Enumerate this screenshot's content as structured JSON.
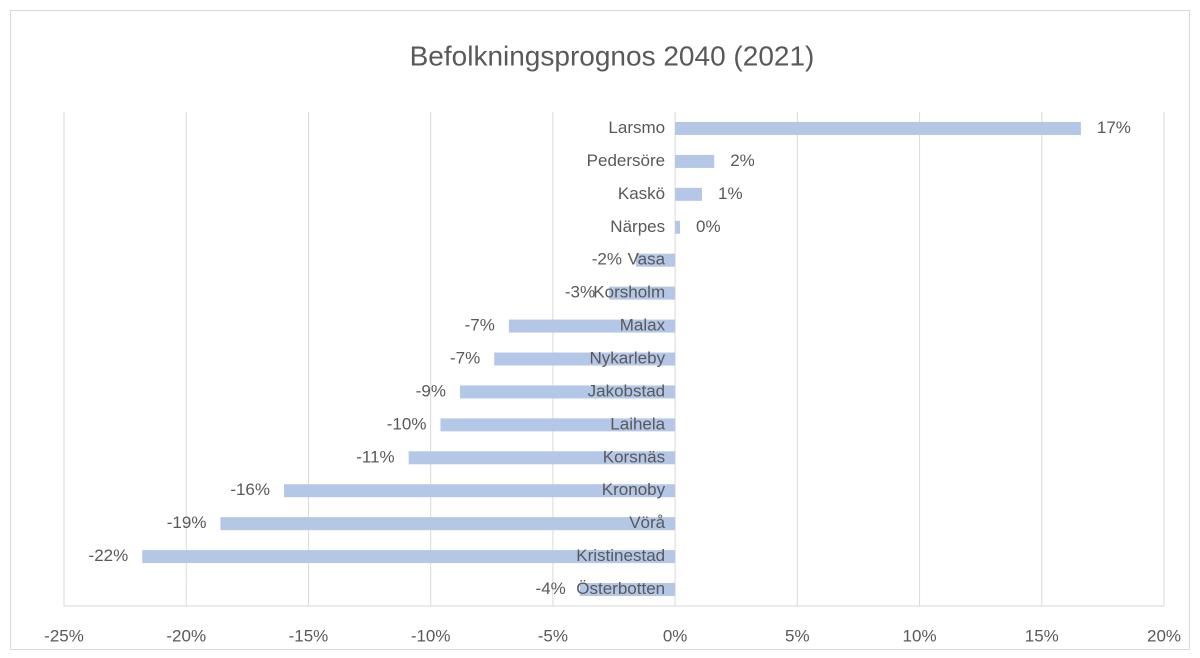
{
  "chart_data": {
    "type": "bar",
    "orientation": "horizontal",
    "title": "Befolkningsprognos 2040 (2021)",
    "categories": [
      "Larsmo",
      "Pedersöre",
      "Kaskö",
      "Närpes",
      "Vasa",
      "Korsholm",
      "Malax",
      "Nykarleby",
      "Jakobstad",
      "Laihela",
      "Korsnäs",
      "Kronoby",
      "Vörå",
      "Kristinestad",
      "Österbotten"
    ],
    "values": [
      16.6,
      1.6,
      1.1,
      0.2,
      -1.6,
      -2.7,
      -6.8,
      -7.4,
      -8.8,
      -9.6,
      -10.9,
      -16.0,
      -18.6,
      -21.8,
      -3.9
    ],
    "value_labels": [
      "17%",
      "2%",
      "1%",
      "0%",
      "-2%",
      "-3%",
      "-7%",
      "-7%",
      "-9%",
      "-10%",
      "-11%",
      "-16%",
      "-19%",
      "-22%",
      "-4%"
    ],
    "color": "#b4c7e7",
    "xlim": [
      -25,
      20
    ],
    "xticks": [
      {
        "value": -25,
        "label": "-25%"
      },
      {
        "value": -20,
        "label": "-20%"
      },
      {
        "value": -15,
        "label": "-15%"
      },
      {
        "value": -10,
        "label": "-10%"
      },
      {
        "value": -5,
        "label": "-5%"
      },
      {
        "value": 0,
        "label": "0%"
      },
      {
        "value": 5,
        "label": "5%"
      },
      {
        "value": 10,
        "label": "10%"
      },
      {
        "value": 15,
        "label": "15%"
      },
      {
        "value": 20,
        "label": "20%"
      }
    ],
    "grid": true
  }
}
